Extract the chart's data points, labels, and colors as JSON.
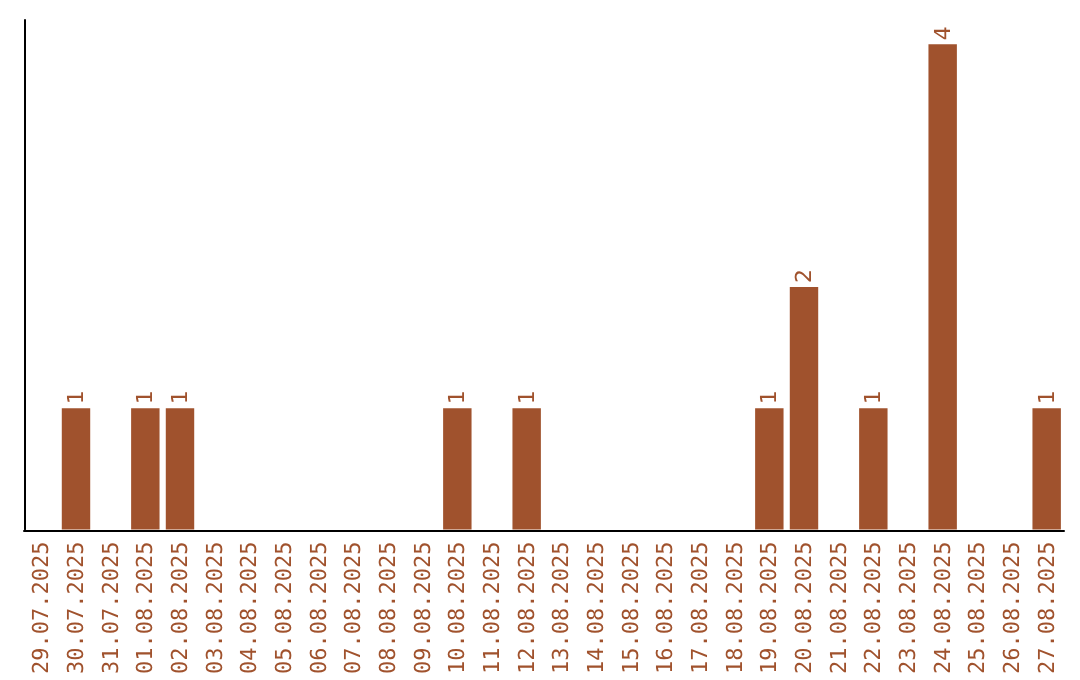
{
  "chart_data": {
    "type": "bar",
    "categories": [
      "29.07.2025",
      "30.07.2025",
      "31.07.2025",
      "01.08.2025",
      "02.08.2025",
      "03.08.2025",
      "04.08.2025",
      "05.08.2025",
      "06.08.2025",
      "07.08.2025",
      "08.08.2025",
      "09.08.2025",
      "10.08.2025",
      "11.08.2025",
      "12.08.2025",
      "13.08.2025",
      "14.08.2025",
      "15.08.2025",
      "16.08.2025",
      "17.08.2025",
      "18.08.2025",
      "19.08.2025",
      "20.08.2025",
      "21.08.2025",
      "22.08.2025",
      "23.08.2025",
      "24.08.2025",
      "25.08.2025",
      "26.08.2025",
      "27.08.2025"
    ],
    "values": [
      0,
      1,
      0,
      1,
      1,
      0,
      0,
      0,
      0,
      0,
      0,
      0,
      1,
      0,
      1,
      0,
      0,
      0,
      0,
      0,
      0,
      1,
      2,
      0,
      1,
      0,
      4,
      0,
      0,
      1
    ],
    "value_labels": [
      null,
      "1",
      null,
      "1",
      "1",
      null,
      null,
      null,
      null,
      null,
      null,
      null,
      "1",
      null,
      "1",
      null,
      null,
      null,
      null,
      null,
      null,
      "1",
      "2",
      null,
      "1",
      null,
      "4",
      null,
      null,
      "1"
    ],
    "color": "#a0522d",
    "ylim": [
      0,
      4.2
    ],
    "tick_labels": "x",
    "grid": false
  }
}
